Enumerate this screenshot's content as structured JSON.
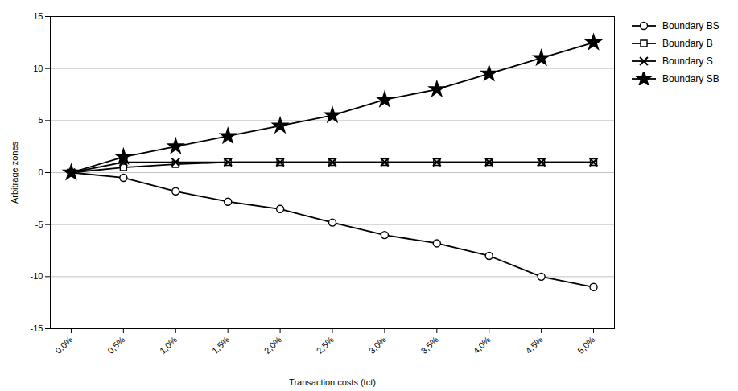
{
  "chart_data": {
    "type": "line",
    "xlabel": "Transaction costs (tct)",
    "ylabel": "Arbitrage zones",
    "x": [
      0.0,
      0.5,
      1.0,
      1.5,
      2.0,
      2.5,
      3.0,
      3.5,
      4.0,
      4.5,
      5.0
    ],
    "series": [
      {
        "name": "Boundary BS",
        "color": "#000000",
        "marker": "circle",
        "values": [
          0.0,
          -0.5,
          -1.8,
          -2.8,
          -3.5,
          -4.8,
          -6.0,
          -6.8,
          -8.0,
          -10.0,
          -11.0
        ]
      },
      {
        "name": "Boundary B",
        "color": "#000000",
        "marker": "square",
        "values": [
          0.0,
          0.5,
          0.8,
          1.0,
          1.0,
          1.0,
          1.0,
          1.0,
          1.0,
          1.0,
          1.0
        ]
      },
      {
        "name": "Boundary S",
        "color": "#000000",
        "marker": "x",
        "values": [
          0.0,
          1.0,
          1.0,
          1.0,
          1.0,
          1.0,
          1.0,
          1.0,
          1.0,
          1.0,
          1.0
        ]
      },
      {
        "name": "Boundary SB",
        "color": "#000000",
        "marker": "star",
        "values": [
          0.0,
          1.5,
          2.5,
          3.5,
          4.5,
          5.5,
          7.0,
          8.0,
          9.5,
          11.0,
          12.5
        ]
      }
    ],
    "xlim": [
      -0.2,
      5.2
    ],
    "xticks": [
      {
        "value": 0.0,
        "label": "0,0%"
      },
      {
        "value": 0.5,
        "label": "0,5%"
      },
      {
        "value": 1.0,
        "label": "1,0%"
      },
      {
        "value": 1.5,
        "label": "1,5%"
      },
      {
        "value": 2.0,
        "label": "2,0%"
      },
      {
        "value": 2.5,
        "label": "2,5%"
      },
      {
        "value": 3.0,
        "label": "3,0%"
      },
      {
        "value": 3.5,
        "label": "3,5%"
      },
      {
        "value": 4.0,
        "label": "4,0%"
      },
      {
        "value": 4.5,
        "label": "4,5%"
      },
      {
        "value": 5.0,
        "label": "5,0%"
      }
    ],
    "ylim": [
      -15,
      15
    ],
    "yticks": [
      -15,
      -10,
      -5,
      0,
      5,
      10,
      15
    ],
    "grid": true,
    "legend": "upper right"
  }
}
